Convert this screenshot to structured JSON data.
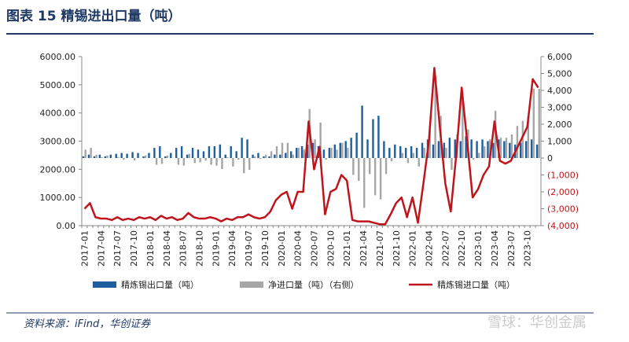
{
  "chart_data": {
    "type": "bar-line",
    "title": "图表 15   精锡进出口量（吨）",
    "source": "资料来源：iFind，华创证券",
    "watermark": "雪球：华创金属",
    "categories": [
      "2017-01",
      null,
      null,
      "2017-04",
      null,
      null,
      "2017-07",
      null,
      null,
      "2017-10",
      null,
      null,
      "2018-01",
      null,
      null,
      "2018-04",
      null,
      null,
      "2018-07",
      null,
      null,
      "2018-10",
      null,
      null,
      "2019-01",
      null,
      null,
      "2019-04",
      null,
      null,
      "2019-07",
      null,
      null,
      "2019-10",
      null,
      null,
      "2020-01",
      null,
      null,
      "2020-04",
      null,
      null,
      "2020-07",
      null,
      null,
      "2020-10",
      null,
      null,
      "2021-01",
      null,
      null,
      "2021-04",
      null,
      null,
      "2021-07",
      null,
      null,
      "2021-10",
      null,
      null,
      "2022-01",
      null,
      null,
      "2022-04",
      null,
      null,
      "2022-07",
      null,
      null,
      "2022-10",
      null,
      null,
      "2023-01",
      null,
      null,
      "2023-04",
      null,
      null,
      "2023-07",
      null,
      null,
      "2023-10",
      null,
      null
    ],
    "series": [
      {
        "name": "精炼锡出口量（吨）",
        "type": "bar",
        "axis": "y2",
        "color": "#1f5fa0",
        "values": [
          100,
          200,
          100,
          200,
          100,
          200,
          250,
          300,
          250,
          350,
          300,
          100,
          300,
          600,
          700,
          100,
          300,
          600,
          700,
          200,
          600,
          500,
          400,
          700,
          700,
          800,
          200,
          700,
          400,
          1200,
          1100,
          200,
          300,
          100,
          100,
          200,
          200,
          300,
          400,
          600,
          700,
          800,
          900,
          700,
          500,
          600,
          800,
          900,
          1000,
          1200,
          1500,
          3100,
          1100,
          2300,
          2500,
          1000,
          600,
          800,
          700,
          600,
          700,
          600,
          900,
          1100,
          800,
          1000,
          900,
          1200,
          1100,
          1000,
          1300,
          1100,
          1000,
          1100,
          1000,
          900,
          1100,
          1000,
          900,
          800,
          900,
          1000,
          1100,
          800
        ]
      },
      {
        "name": "净进口量（吨）（右侧）",
        "type": "bar",
        "axis": "y2",
        "color": "#a6a6a6",
        "values": [
          500,
          600,
          200,
          50,
          150,
          0,
          50,
          -100,
          0,
          -150,
          0,
          150,
          0,
          -400,
          -350,
          150,
          0,
          -400,
          -450,
          250,
          -300,
          -250,
          -150,
          -400,
          -450,
          -650,
          50,
          -500,
          -100,
          -900,
          -700,
          100,
          -50,
          200,
          400,
          700,
          900,
          900,
          200,
          600,
          500,
          2900,
          1100,
          2100,
          -100,
          600,
          500,
          900,
          600,
          -1000,
          -1350,
          -2950,
          -950,
          -2200,
          -2450,
          -950,
          -200,
          0,
          300,
          -300,
          300,
          -500,
          600,
          1900,
          4800,
          2500,
          600,
          -700,
          1400,
          3900,
          1700,
          -100,
          300,
          700,
          1100,
          2800,
          1200,
          1200,
          1400,
          1900,
          2200,
          2500,
          4100,
          4100
        ]
      },
      {
        "name": "精炼锡进口量（吨）",
        "type": "line",
        "color": "#c0141c",
        "values": [
          600,
          800,
          300,
          250,
          250,
          200,
          300,
          200,
          250,
          200,
          300,
          250,
          300,
          200,
          350,
          250,
          300,
          200,
          250,
          450,
          300,
          250,
          250,
          300,
          250,
          150,
          250,
          200,
          300,
          300,
          400,
          300,
          250,
          300,
          500,
          900,
          1100,
          1200,
          600,
          1200,
          1200,
          3700,
          2000,
          2800,
          400,
          1200,
          1300,
          1800,
          1600,
          200,
          150,
          150,
          150,
          100,
          50,
          50,
          400,
          800,
          1000,
          300,
          1000,
          100,
          1500,
          3000,
          5600,
          3500,
          1500,
          500,
          2500,
          4900,
          3000,
          1000,
          1300,
          1800,
          2100,
          3700,
          2300,
          2200,
          2300,
          2700,
          3100,
          3500,
          5200,
          4900
        ]
      }
    ],
    "ylim": [
      0,
      6000
    ],
    "yticks": [
      {
        "value": 0,
        "label": "0.00"
      },
      {
        "value": 1000,
        "label": "1000.00"
      },
      {
        "value": 2000,
        "label": "2000.00"
      },
      {
        "value": 3000,
        "label": "3000.00"
      },
      {
        "value": 4000,
        "label": "4000.00"
      },
      {
        "value": 5000,
        "label": "5000.00"
      },
      {
        "value": 6000,
        "label": "6000.00"
      }
    ],
    "y2lim": [
      -4000,
      6000
    ],
    "y2ticks": [
      {
        "value": -4000,
        "label": "(4,000)"
      },
      {
        "value": -3000,
        "label": "(3,000)"
      },
      {
        "value": -2000,
        "label": "(2,000)"
      },
      {
        "value": -1000,
        "label": "(1,000)"
      },
      0,
      {
        "value": 1000,
        "label": "1,000"
      },
      {
        "value": 2000,
        "label": "2,000"
      },
      {
        "value": 3000,
        "label": "3,000"
      },
      {
        "value": 4000,
        "label": "4,000"
      },
      {
        "value": 5000,
        "label": "5,000"
      },
      {
        "value": 6000,
        "label": "6,000"
      }
    ],
    "y2_label_color": "#c0141c",
    "negative_label_color": "#c0141c"
  }
}
